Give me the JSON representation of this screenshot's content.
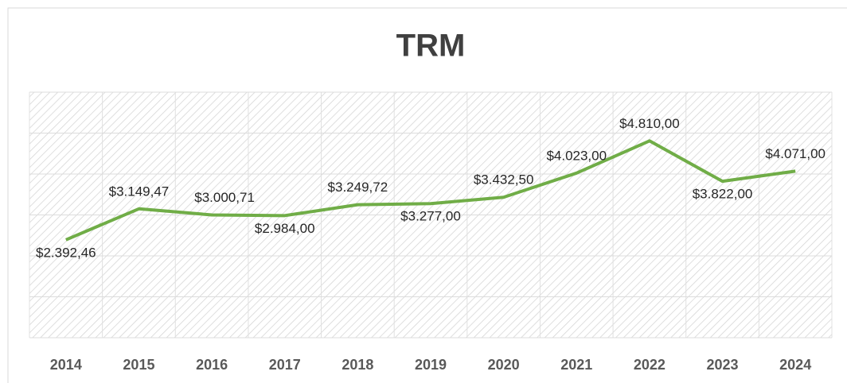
{
  "chart_data": {
    "type": "line",
    "title": "TRM",
    "categories": [
      "2014",
      "2015",
      "2016",
      "2017",
      "2018",
      "2019",
      "2020",
      "2021",
      "2022",
      "2023",
      "2024"
    ],
    "series": [
      {
        "name": "TRM",
        "color": "#70ad47",
        "values": [
          2392.46,
          3149.47,
          3000.71,
          2984.0,
          3249.72,
          3277.0,
          3432.5,
          4023.0,
          4810.0,
          3822.0,
          4071.0
        ],
        "value_labels": [
          "$2.392,46",
          "$3.149,47",
          "$3.000,71",
          "$2.984,00",
          "$3.249,72",
          "$3.277,00",
          "$3.432,50",
          "$4.023,00",
          "$4.810,00",
          "$3.822,00",
          "$4.071,00"
        ]
      }
    ],
    "ylim": [
      0,
      6000
    ],
    "yticks": [
      0,
      1000,
      2000,
      3000,
      4000,
      5000,
      6000
    ],
    "grid": true
  }
}
